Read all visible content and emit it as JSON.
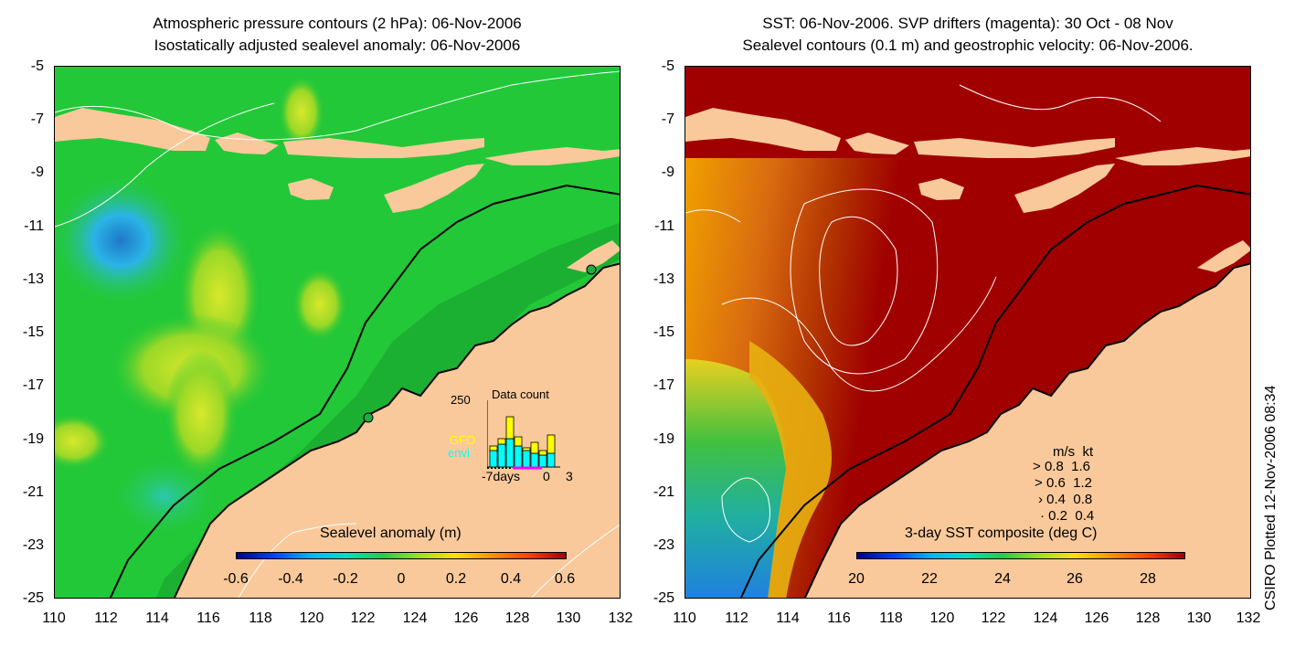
{
  "left": {
    "title_line1": "Atmospheric pressure contours (2 hPa): 06-Nov-2006",
    "title_line2": "Isostatically adjusted sealevel anomaly: 06-Nov-2006",
    "colorbar_title": "Sealevel anomaly (m)",
    "colorbar_ticks": [
      "-0.6",
      "-0.4",
      "-0.2",
      "0",
      "0.2",
      "0.4",
      "0.6"
    ],
    "inset": {
      "title": "Data count",
      "ymax_label": "250",
      "series_labels": [
        "GFO",
        "envi"
      ],
      "xlabels": [
        "-7days",
        "0",
        "3"
      ],
      "colors": {
        "GFO": "#ffff00",
        "envi": "#00ffff"
      }
    }
  },
  "right": {
    "title_line1": "SST: 06-Nov-2006. SVP drifters (magenta): 30 Oct - 08 Nov",
    "title_line2": "Sealevel contours (0.1 m) and geostrophic velocity: 06-Nov-2006.",
    "colorbar_title": "3-day SST composite (deg C)",
    "colorbar_ticks": [
      "20",
      "22",
      "24",
      "26",
      "28"
    ],
    "velocity_legend": {
      "header": [
        "m/s",
        "kt"
      ],
      "rows": [
        [
          "0.8",
          "1.6"
        ],
        [
          "0.6",
          "1.2"
        ],
        [
          "0.4",
          "0.8"
        ],
        [
          "0.2",
          "0.4"
        ]
      ]
    }
  },
  "y_ticks": [
    "-5",
    "-7",
    "-9",
    "-11",
    "-13",
    "-15",
    "-17",
    "-19",
    "-21",
    "-23",
    "-25"
  ],
  "x_ticks": [
    "110",
    "112",
    "114",
    "116",
    "118",
    "120",
    "122",
    "124",
    "126",
    "128",
    "130",
    "132"
  ],
  "stamp": "CSIRO Plotted 12-Nov-2006 08:34",
  "colors": {
    "land": "#f9c99b",
    "ocean_green": "#22c838",
    "sst_warm": "#a50000"
  }
}
